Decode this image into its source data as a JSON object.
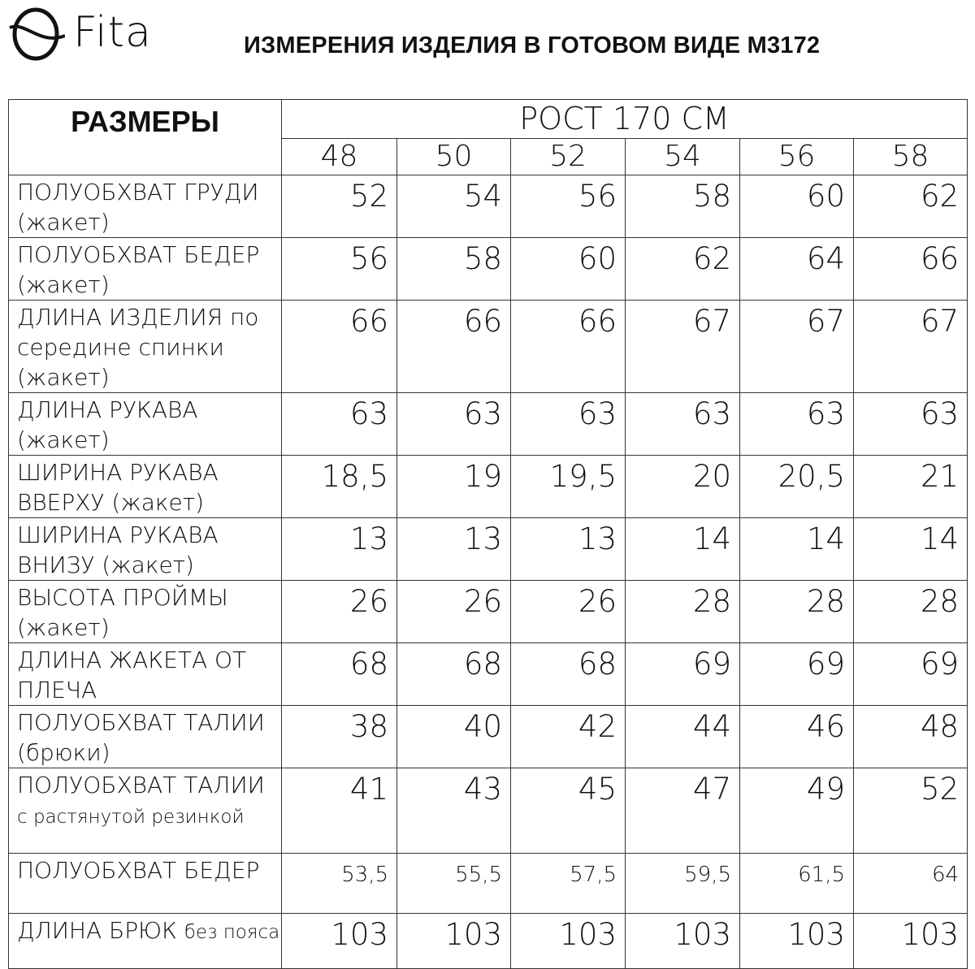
{
  "logo": {
    "text": "Fita"
  },
  "title": "ИЗМЕРЕНИЯ ИЗДЕЛИЯ В ГОТОВОМ ВИДЕ М3172",
  "table": {
    "sizes_header": "РАЗМЕРЫ",
    "height_header": "РОСТ 170 СМ",
    "sizes": [
      "48",
      "50",
      "52",
      "54",
      "56",
      "58"
    ],
    "rows": [
      {
        "label": "ПОЛУОБХВАТ ГРУДИ (жакет)",
        "values": [
          "52",
          "54",
          "56",
          "58",
          "60",
          "62"
        ]
      },
      {
        "label": "ПОЛУОБХВАТ БЕДЕР (жакет)",
        "values": [
          "56",
          "58",
          "60",
          "62",
          "64",
          "66"
        ]
      },
      {
        "label": "ДЛИНА ИЗДЕЛИЯ по середине спинки (жакет)",
        "values": [
          "66",
          "66",
          "66",
          "67",
          "67",
          "67"
        ]
      },
      {
        "label": "ДЛИНА РУКАВА (жакет)",
        "values": [
          "63",
          "63",
          "63",
          "63",
          "63",
          "63"
        ]
      },
      {
        "label": "ШИРИНА РУКАВА ВВЕРХУ (жакет)",
        "values": [
          "18,5",
          "19",
          "19,5",
          "20",
          "20,5",
          "21"
        ]
      },
      {
        "label": "ШИРИНА РУКАВА ВНИЗУ (жакет)",
        "values": [
          "13",
          "13",
          "13",
          "14",
          "14",
          "14"
        ]
      },
      {
        "label": "ВЫСОТА ПРОЙМЫ (жакет)",
        "values": [
          "26",
          "26",
          "26",
          "28",
          "28",
          "28"
        ]
      },
      {
        "label": "ДЛИНА ЖАКЕТА ОТ ПЛЕЧА",
        "values": [
          "68",
          "68",
          "68",
          "69",
          "69",
          "69"
        ]
      },
      {
        "label": "ПОЛУОБХВАТ ТАЛИИ (брюки)",
        "values": [
          "38",
          "40",
          "42",
          "44",
          "46",
          "48"
        ]
      },
      {
        "label": "ПОЛУОБХВАТ ТАЛИИ",
        "label_small": "с растянутой резинкой",
        "values": [
          "41",
          "43",
          "45",
          "47",
          "49",
          "52"
        ]
      },
      {
        "label": "ПОЛУОБХВАТ БЕДЕР",
        "values": [
          "53,5",
          "55,5",
          "57,5",
          "59,5",
          "61,5",
          "64"
        ]
      },
      {
        "label": "ДЛИНА БРЮК",
        "label_small": "без пояса",
        "values": [
          "103",
          "103",
          "103",
          "103",
          "103",
          "103"
        ]
      }
    ]
  }
}
